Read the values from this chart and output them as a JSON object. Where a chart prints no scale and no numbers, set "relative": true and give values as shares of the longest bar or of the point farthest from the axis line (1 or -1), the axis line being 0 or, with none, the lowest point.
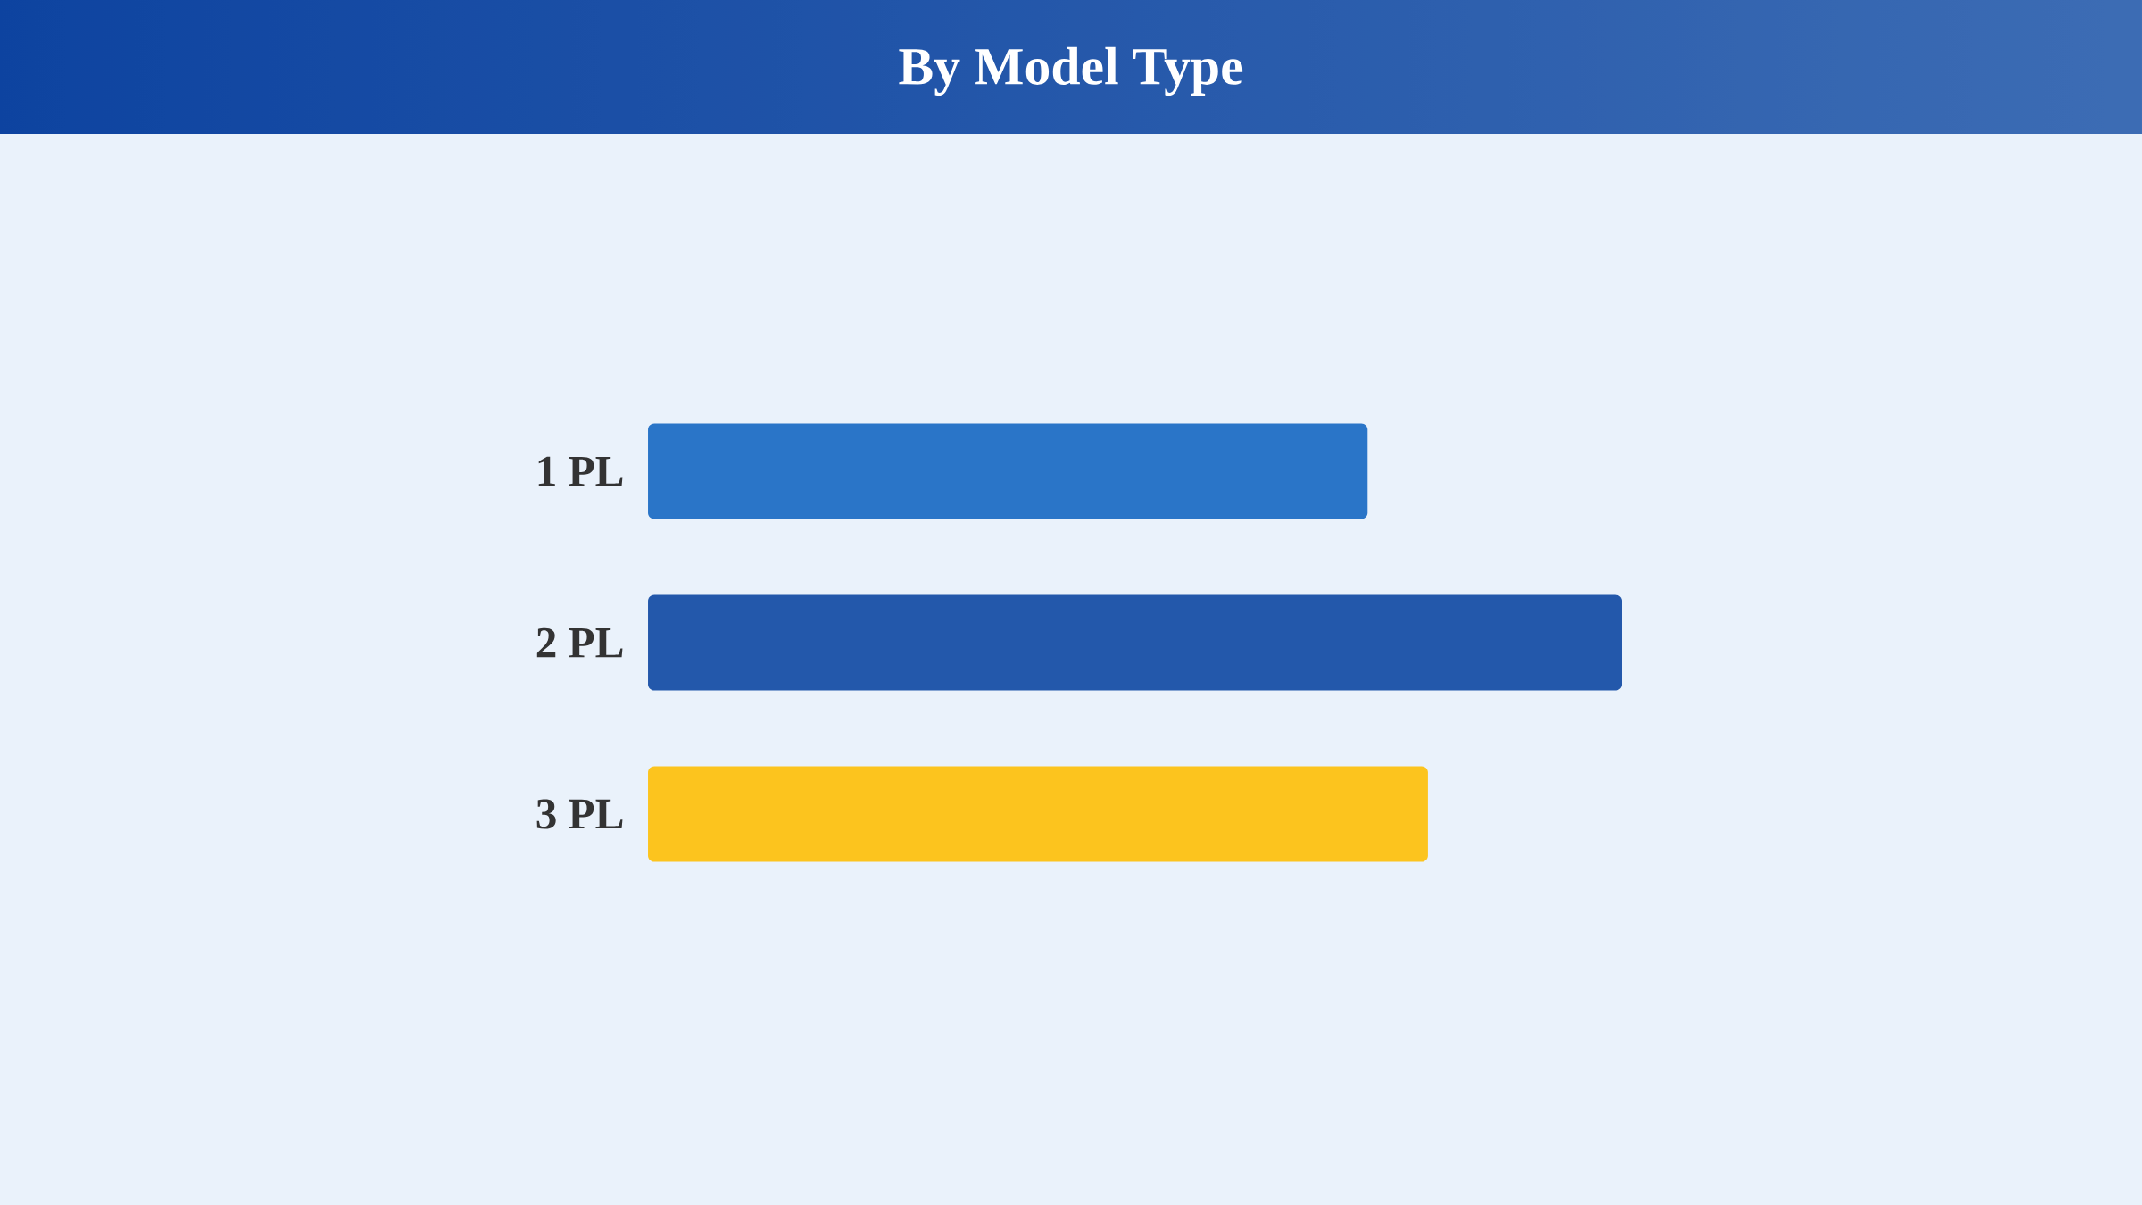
{
  "chart_data": {
    "type": "bar",
    "orientation": "horizontal",
    "relative": true,
    "title": "By Model Type",
    "categories": [
      "1 PL",
      "2 PL",
      "3 PL"
    ],
    "values": [
      0.739,
      1,
      0.801
    ],
    "colors": [
      "#2a75c8",
      "#2358ab",
      "#fcc41e"
    ]
  }
}
